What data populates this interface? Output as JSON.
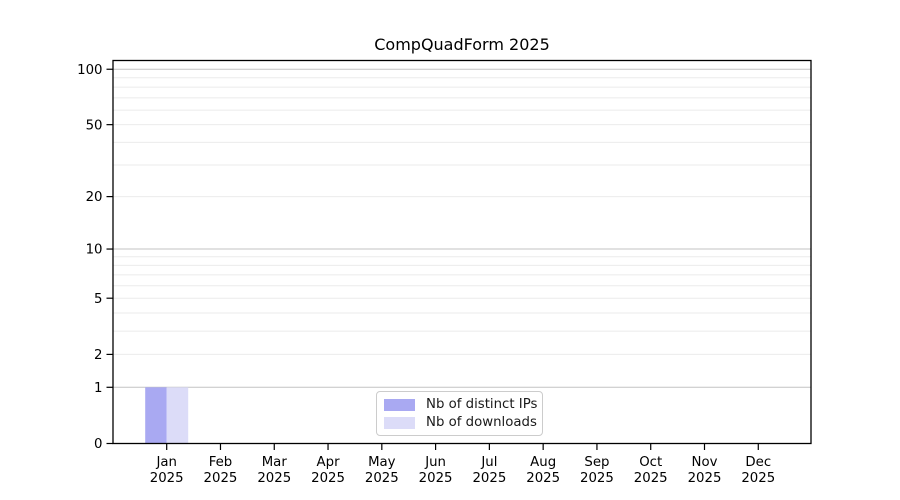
{
  "page": {
    "background_color": "#ffffff"
  },
  "chart_data": {
    "type": "bar",
    "title": "CompQuadForm 2025",
    "xlabel": "",
    "ylabel": "",
    "categories": [
      "Jan",
      "Feb",
      "Mar",
      "Apr",
      "May",
      "Jun",
      "Jul",
      "Aug",
      "Sep",
      "Oct",
      "Nov",
      "Dec"
    ],
    "category_year": "2025",
    "series": [
      {
        "name": "Nb of distinct IPs",
        "color": "#a9a9f2",
        "values": [
          1,
          0,
          0,
          0,
          0,
          0,
          0,
          0,
          0,
          0,
          0,
          0
        ]
      },
      {
        "name": "Nb of downloads",
        "color": "#dcdcf8",
        "values": [
          1,
          0,
          0,
          0,
          0,
          0,
          0,
          0,
          0,
          0,
          0,
          0
        ]
      }
    ],
    "yscale": "log1p",
    "ylim": [
      0,
      111.5
    ],
    "yticks": [
      0,
      1,
      2,
      5,
      10,
      20,
      50,
      100
    ],
    "grid": {
      "orientation": "horizontal",
      "major_lines": [
        1,
        10,
        100
      ],
      "minor_lines": [
        2,
        3,
        4,
        5,
        6,
        7,
        8,
        9,
        20,
        30,
        40,
        50,
        60,
        70,
        80,
        90
      ],
      "major_color": "#c3c3c3",
      "minor_color": "#ebebeb"
    },
    "legend": {
      "position": "bottom-center",
      "border_color": "#cccccc"
    }
  }
}
